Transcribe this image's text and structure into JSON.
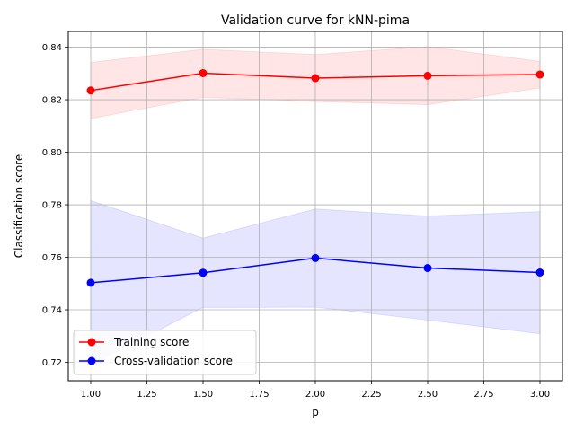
{
  "chart_data": {
    "type": "line",
    "title": "Validation curve for kNN-pima",
    "xlabel": "p",
    "ylabel": "Classification score",
    "xlim": [
      0.9,
      3.1
    ],
    "ylim": [
      0.713,
      0.846
    ],
    "xticks": [
      "1.00",
      "1.25",
      "1.50",
      "1.75",
      "2.00",
      "2.25",
      "2.50",
      "2.75",
      "3.00"
    ],
    "yticks": [
      "0.72",
      "0.74",
      "0.76",
      "0.78",
      "0.80",
      "0.82",
      "0.84"
    ],
    "grid": true,
    "legend_position": "lower-left",
    "x": [
      1.0,
      1.5,
      2.0,
      2.5,
      3.0
    ],
    "series": [
      {
        "name": "Training score",
        "color": "#ff0000",
        "values": [
          0.8235,
          0.8301,
          0.8282,
          0.8291,
          0.8296
        ],
        "band_upper": [
          0.8342,
          0.8392,
          0.8372,
          0.8402,
          0.8346
        ],
        "band_lower": [
          0.8128,
          0.8209,
          0.8193,
          0.8181,
          0.8245
        ]
      },
      {
        "name": "Cross-validation score",
        "color": "#0000ff",
        "values": [
          0.7503,
          0.7541,
          0.7597,
          0.7559,
          0.7542
        ],
        "band_upper": [
          0.7816,
          0.7673,
          0.7784,
          0.7757,
          0.7774
        ],
        "band_lower": [
          0.719,
          0.7409,
          0.741,
          0.7361,
          0.7309
        ]
      }
    ]
  }
}
